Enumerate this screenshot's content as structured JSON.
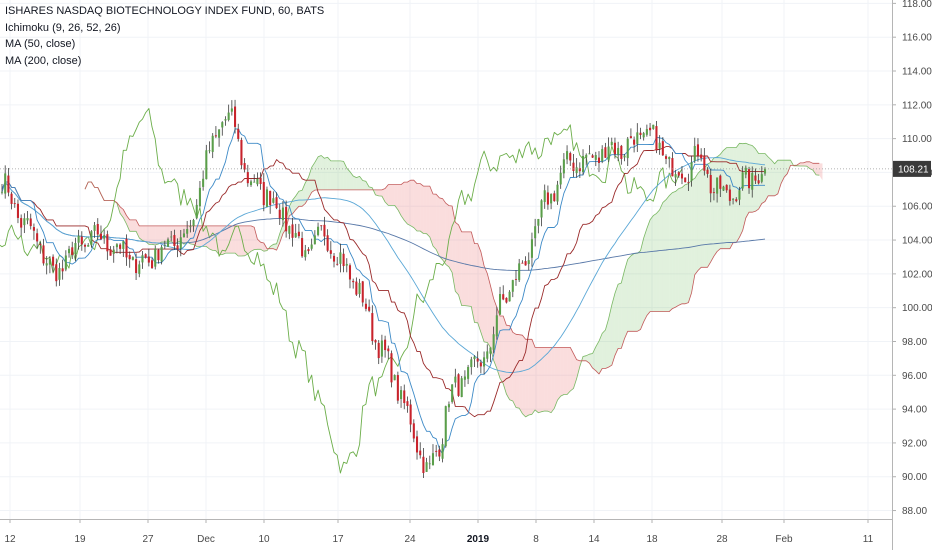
{
  "legend": {
    "title": "ISHARES NASDAQ BIOTECHNOLOGY INDEX FUND, 60, BATS",
    "indicators": [
      "Ichimoku (9, 26, 52, 26)",
      "MA (50, close)",
      "MA (200, close)"
    ]
  },
  "colors": {
    "up": "#5a9e4a",
    "down": "#c8232c",
    "wick": "#3a3a3a",
    "conversion": "#3d8ac7",
    "base": "#9a2a2a",
    "lagging": "#6cae4a",
    "span_a": "#7ab864",
    "span_b": "#c25a5a",
    "cloud_bull": "rgba(120,190,100,0.22)",
    "cloud_bear": "rgba(235,120,120,0.25)",
    "ma50": "#5aa7d6",
    "ma200": "#5878a8",
    "price_label_bg": "#3a3a3a",
    "price_label_text": "#ffffff"
  },
  "chart_data": {
    "type": "candlestick",
    "y_axis": {
      "ticks": [
        "88.00",
        "90.00",
        "92.00",
        "94.00",
        "96.00",
        "98.00",
        "100.00",
        "102.00",
        "104.00",
        "106.00",
        "108.00",
        "110.00",
        "112.00",
        "114.00",
        "116.00",
        "118.00"
      ],
      "ylim": [
        87.5,
        118.2
      ],
      "position": "right"
    },
    "x_axis": {
      "ticks": [
        "12",
        "19",
        "27",
        "Dec",
        "10",
        "17",
        "24",
        "2019",
        "8",
        "14",
        "18",
        "28",
        "Feb",
        "11"
      ],
      "bold": [
        "2019"
      ]
    },
    "last_price": "108.21",
    "last_value": 108.21,
    "close_path": [
      [
        0,
        107.5
      ],
      [
        3,
        105.2
      ],
      [
        6,
        103.6
      ],
      [
        8,
        101.8
      ],
      [
        11,
        103.4
      ],
      [
        15,
        104.2
      ],
      [
        18,
        103.5
      ],
      [
        21,
        102.5
      ],
      [
        24,
        103.3
      ],
      [
        26,
        103.8
      ],
      [
        29,
        104.6
      ],
      [
        31,
        107.8
      ],
      [
        34,
        111.2
      ],
      [
        36,
        110.8
      ],
      [
        38,
        107.5
      ],
      [
        41,
        106.8
      ],
      [
        44,
        105.2
      ],
      [
        47,
        103.0
      ],
      [
        50,
        104.5
      ],
      [
        52,
        103.0
      ],
      [
        55,
        101.2
      ],
      [
        57,
        99.0
      ],
      [
        59,
        97.2
      ],
      [
        61,
        95.5
      ],
      [
        63,
        93.3
      ],
      [
        65,
        91.2
      ],
      [
        66,
        90.0
      ],
      [
        68,
        92.5
      ],
      [
        69,
        94.6
      ],
      [
        72,
        96.0
      ],
      [
        75,
        97.2
      ],
      [
        77,
        100.0
      ],
      [
        79,
        101.5
      ],
      [
        80,
        102.0
      ],
      [
        82,
        103.8
      ],
      [
        84,
        106.2
      ],
      [
        86,
        107.5
      ],
      [
        88,
        108.8
      ],
      [
        90,
        108.6
      ],
      [
        92,
        109.0
      ],
      [
        94,
        109.5
      ],
      [
        96,
        109.4
      ],
      [
        98,
        110.0
      ],
      [
        100,
        110.2
      ],
      [
        102,
        109.3
      ],
      [
        104,
        108.0
      ],
      [
        106,
        108.3
      ],
      [
        108,
        109.2
      ],
      [
        110,
        107.0
      ],
      [
        112,
        106.6
      ],
      [
        114,
        107.1
      ],
      [
        116,
        107.7
      ],
      [
        118,
        108.21
      ]
    ],
    "ichimoku": {
      "conversion": 9,
      "base": 26,
      "span_b": 52,
      "displacement": 26
    },
    "moving_averages": [
      50,
      200
    ]
  }
}
